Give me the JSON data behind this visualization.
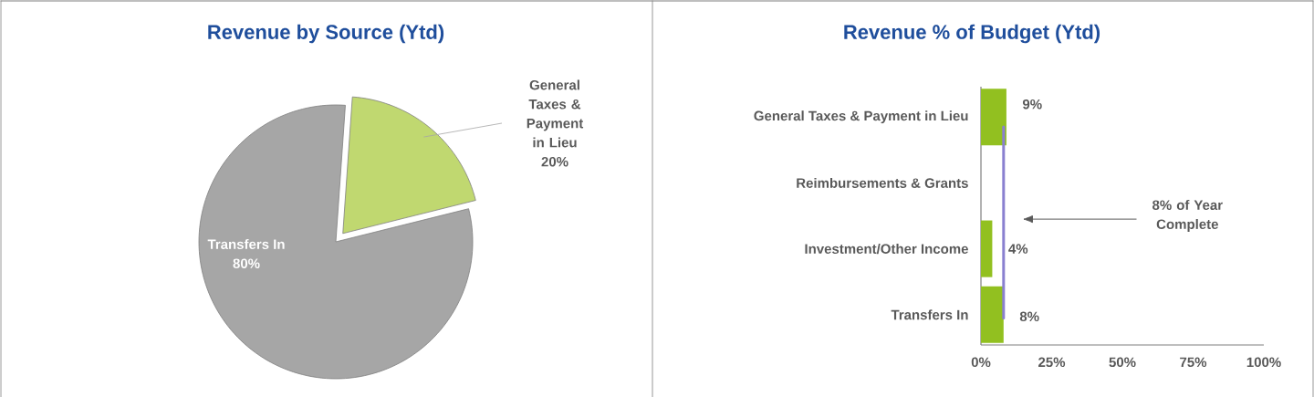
{
  "chart_data": [
    {
      "type": "pie",
      "title": "Revenue by Source (Ytd)",
      "categories": [
        "Transfers In",
        "General Taxes & Payment in Lieu"
      ],
      "values": [
        80,
        20
      ],
      "colors": [
        "#a6a6a6",
        "#c0d870"
      ],
      "value_labels": [
        "80%",
        "20%"
      ]
    },
    {
      "type": "bar",
      "orientation": "horizontal",
      "title": "Revenue % of Budget (Ytd)",
      "categories": [
        "General Taxes & Payment in Lieu",
        "Reimbursements & Grants",
        "Investment/Other Income",
        "Transfers In"
      ],
      "values": [
        9,
        0,
        4,
        8
      ],
      "value_labels": [
        "9%",
        null,
        "4%",
        "8%"
      ],
      "color": "#92c020",
      "xlim": [
        0,
        100
      ],
      "xticks": [
        {
          "value": 0,
          "label": "0%"
        },
        {
          "value": 25,
          "label": "25%"
        },
        {
          "value": 50,
          "label": "50%"
        },
        {
          "value": 75,
          "label": "75%"
        },
        {
          "value": 100,
          "label": "100%"
        }
      ],
      "ref_lines": [
        {
          "axis": "x",
          "value": 8,
          "color": "#8a80d0"
        }
      ],
      "annotations": [
        "8% of Year Complete"
      ]
    }
  ]
}
